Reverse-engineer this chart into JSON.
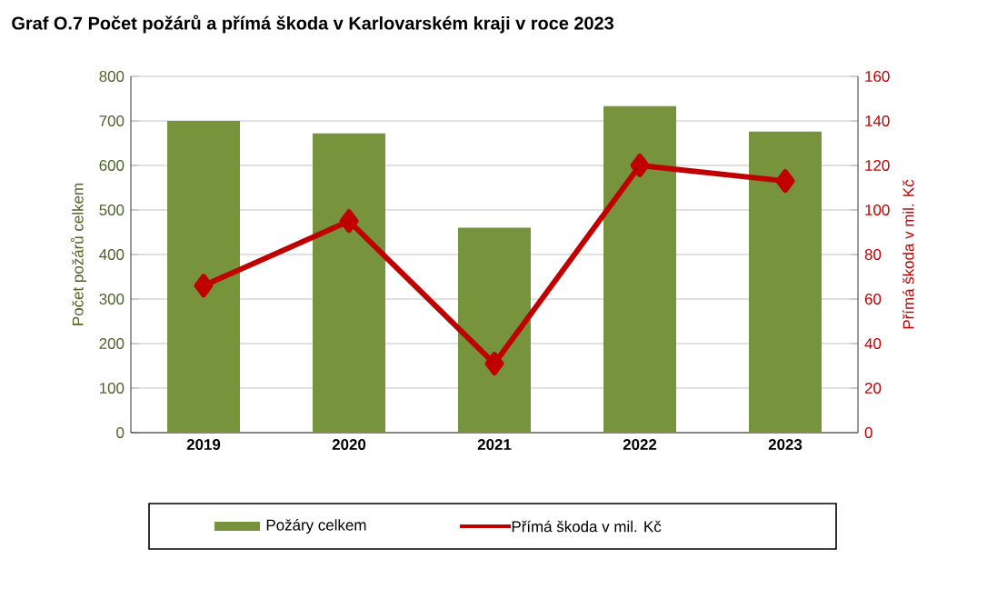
{
  "chart_data": {
    "type": "bar",
    "title": "Graf O.7 Počet požárů a přímá škoda v Karlovarském kraji v roce 2023",
    "categories": [
      "2019",
      "2020",
      "2021",
      "2022",
      "2023"
    ],
    "ylabel": "Počet požárů celkem",
    "y2label": "Přímá škoda v mil. Kč",
    "ylim": [
      0,
      800
    ],
    "yticks": [
      0,
      100,
      200,
      300,
      400,
      500,
      600,
      700,
      800
    ],
    "y2lim": [
      0,
      160
    ],
    "y2ticks": [
      0,
      20,
      40,
      60,
      80,
      100,
      120,
      140,
      160
    ],
    "grid": "y",
    "legend": "bottom",
    "series": [
      {
        "name": "Požáry celkem",
        "color": "#77933c",
        "values": [
          700,
          672,
          460,
          733,
          676
        ]
      },
      {
        "name": "Přímá škoda v mil. Kč",
        "type": "line",
        "axis": "y2",
        "color": "#c00000",
        "marker": "diamond",
        "line_style": "solid",
        "values": [
          66,
          95,
          31,
          120,
          113
        ]
      }
    ]
  }
}
